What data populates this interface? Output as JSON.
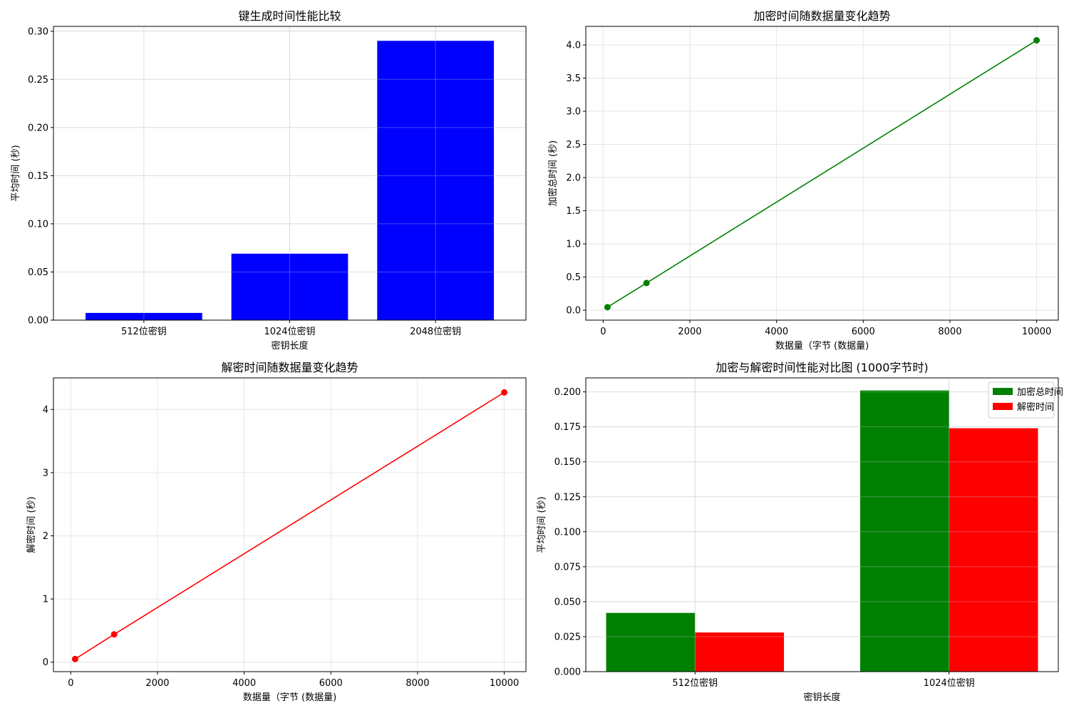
{
  "chart_data": [
    {
      "type": "bar",
      "title": "键生成时间性能比较",
      "xlabel": "密钥长度",
      "ylabel": "平均时间 (秒)",
      "categories": [
        "512位密钥",
        "1024位密钥",
        "2048位密钥"
      ],
      "values": [
        0.0075,
        0.069,
        0.29
      ],
      "ylim": [
        0,
        0.305
      ],
      "yticks": [
        "0.00",
        "0.05",
        "0.10",
        "0.15",
        "0.20",
        "0.25",
        "0.30"
      ],
      "grid": true,
      "color": "#0000ff"
    },
    {
      "type": "line",
      "title": "加密时间随数据量变化趋势",
      "xlabel": "数据量（字节 (数据量)",
      "ylabel": "加密总时间 (秒)",
      "x": [
        100,
        1000,
        10000
      ],
      "y": [
        0.045,
        0.41,
        4.07
      ],
      "xlim": [
        -400,
        10500
      ],
      "ylim": [
        -0.15,
        4.28
      ],
      "xticks": [
        "0",
        "2000",
        "4000",
        "6000",
        "8000",
        "10000"
      ],
      "yticks": [
        "0.0",
        "0.5",
        "1.0",
        "1.5",
        "2.0",
        "2.5",
        "3.0",
        "3.5",
        "4.0"
      ],
      "grid": true,
      "color": "#008000"
    },
    {
      "type": "line",
      "title": "解密时间随数据量变化趋势",
      "xlabel": "数据量（字节 (数据量)",
      "ylabel": "解密时间 (秒)",
      "x": [
        100,
        1000,
        10000
      ],
      "y": [
        0.05,
        0.44,
        4.27
      ],
      "xlim": [
        -400,
        10500
      ],
      "ylim": [
        -0.15,
        4.5
      ],
      "xticks": [
        "0",
        "2000",
        "4000",
        "6000",
        "8000",
        "10000"
      ],
      "yticks": [
        "0",
        "1",
        "2",
        "3",
        "4"
      ],
      "grid": true,
      "color": "#ff0000"
    },
    {
      "type": "bar",
      "title": "加密与解密时间性能对比图 (1000字节时)",
      "xlabel": "密钥长度",
      "ylabel": "平均时间 (秒)",
      "categories": [
        "512位密钥",
        "1024位密钥"
      ],
      "series": [
        {
          "name": "加密总时间",
          "values": [
            0.042,
            0.201
          ],
          "color": "#008000"
        },
        {
          "name": "解密时间",
          "values": [
            0.028,
            0.174
          ],
          "color": "#ff0000"
        }
      ],
      "ylim": [
        0,
        0.21
      ],
      "yticks": [
        "0.000",
        "0.025",
        "0.050",
        "0.075",
        "0.100",
        "0.125",
        "0.150",
        "0.175",
        "0.200"
      ],
      "grid": true,
      "legend": "top-right"
    }
  ]
}
